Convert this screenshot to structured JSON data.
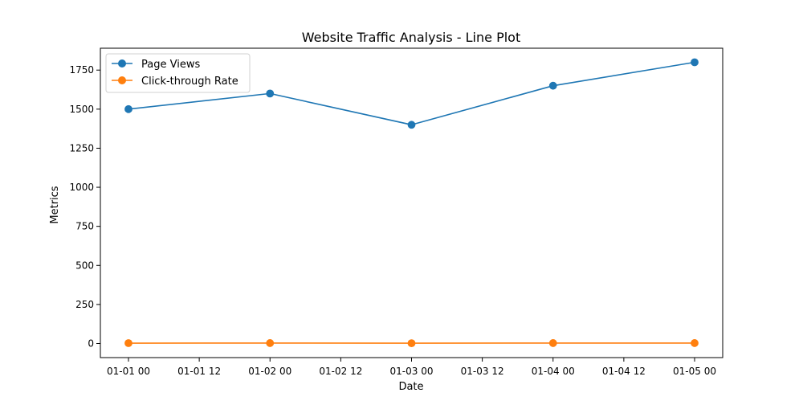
{
  "chart_data": {
    "type": "line",
    "title": "Website Traffic Analysis - Line Plot",
    "xlabel": "Date",
    "ylabel": "Metrics",
    "x": [
      "01-01 00",
      "01-02 00",
      "01-03 00",
      "01-04 00",
      "01-05 00"
    ],
    "x_ticks": [
      "01-01 00",
      "01-01 12",
      "01-02 00",
      "01-02 12",
      "01-03 00",
      "01-03 12",
      "01-04 00",
      "01-04 12",
      "01-05 00"
    ],
    "y_ticks": [
      0,
      250,
      500,
      750,
      1000,
      1250,
      1500,
      1750
    ],
    "ylim": [
      -90,
      1890
    ],
    "grid": false,
    "legend_position": "top-left",
    "series": [
      {
        "name": "Page Views",
        "color": "#1f77b4",
        "values": [
          1500,
          1600,
          1400,
          1650,
          1800
        ]
      },
      {
        "name": "Click-through Rate",
        "color": "#ff7f0e",
        "values": [
          2.5,
          3.0,
          2.0,
          3.0,
          3.0
        ]
      }
    ]
  }
}
